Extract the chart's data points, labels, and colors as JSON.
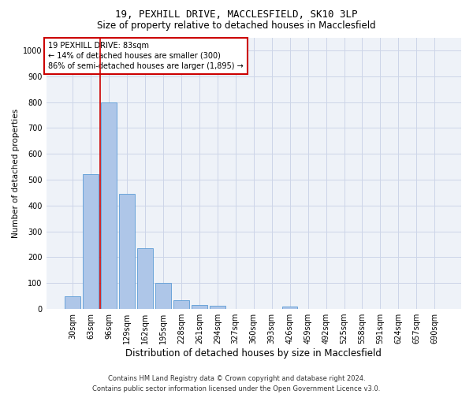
{
  "title1": "19, PEXHILL DRIVE, MACCLESFIELD, SK10 3LP",
  "title2": "Size of property relative to detached houses in Macclesfield",
  "xlabel": "Distribution of detached houses by size in Macclesfield",
  "ylabel": "Number of detached properties",
  "categories": [
    "30sqm",
    "63sqm",
    "96sqm",
    "129sqm",
    "162sqm",
    "195sqm",
    "228sqm",
    "261sqm",
    "294sqm",
    "327sqm",
    "360sqm",
    "393sqm",
    "426sqm",
    "459sqm",
    "492sqm",
    "525sqm",
    "558sqm",
    "591sqm",
    "624sqm",
    "657sqm",
    "690sqm"
  ],
  "values": [
    50,
    520,
    800,
    445,
    235,
    100,
    35,
    15,
    12,
    0,
    0,
    0,
    10,
    0,
    0,
    0,
    0,
    0,
    0,
    0,
    0
  ],
  "bar_color": "#aec6e8",
  "bar_edge_color": "#5b9bd5",
  "vline_color": "#cc0000",
  "vline_x": 1.5,
  "ylim": [
    0,
    1050
  ],
  "yticks": [
    0,
    100,
    200,
    300,
    400,
    500,
    600,
    700,
    800,
    900,
    1000
  ],
  "grid_color": "#ccd5e8",
  "bg_color": "#eef2f8",
  "annotation_text": "19 PEXHILL DRIVE: 83sqm\n← 14% of detached houses are smaller (300)\n86% of semi-detached houses are larger (1,895) →",
  "annotation_box_color": "#ffffff",
  "annotation_box_edge": "#cc0000",
  "footer1": "Contains HM Land Registry data © Crown copyright and database right 2024.",
  "footer2": "Contains public sector information licensed under the Open Government Licence v3.0.",
  "title1_fontsize": 9,
  "title2_fontsize": 8.5,
  "xlabel_fontsize": 8.5,
  "ylabel_fontsize": 7.5,
  "tick_fontsize": 7,
  "annotation_fontsize": 7,
  "footer_fontsize": 6
}
